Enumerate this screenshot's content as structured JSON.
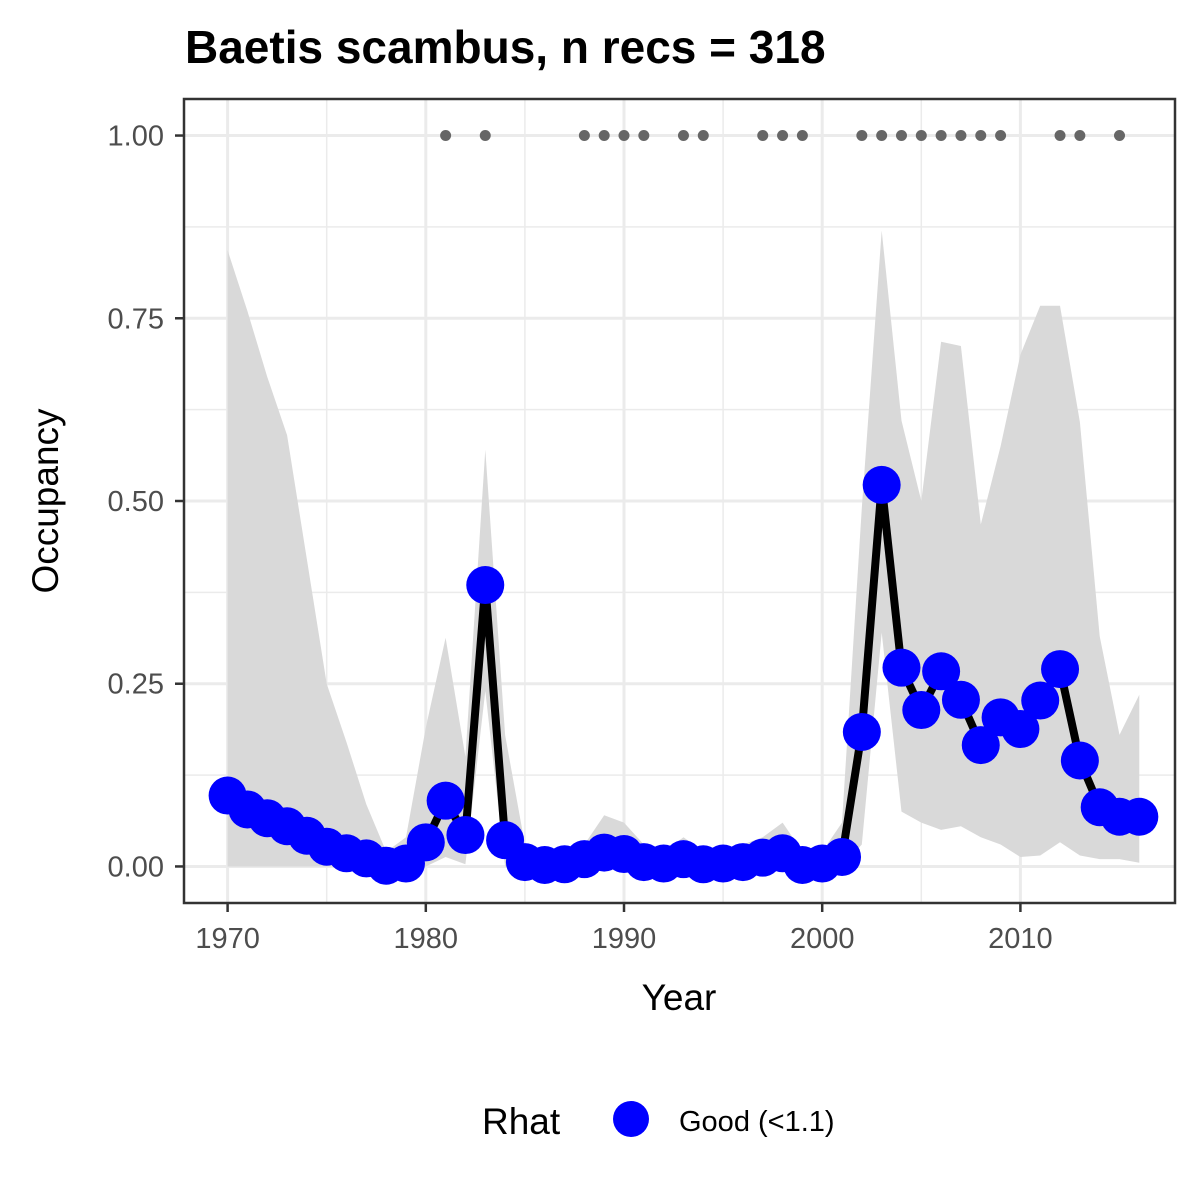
{
  "chart_data": {
    "type": "line",
    "title": "Baetis scambus, n recs = 318",
    "xlabel": "Year",
    "ylabel": "Occupancy",
    "xlim": [
      1967.8,
      2017.8
    ],
    "ylim": [
      -0.05,
      1.05
    ],
    "x_ticks": [
      1970,
      1980,
      1990,
      2000,
      2010
    ],
    "x_tick_labels": [
      "1970",
      "1980",
      "1990",
      "2000",
      "2010"
    ],
    "y_ticks": [
      0,
      0.25,
      0.5,
      0.75,
      1.0
    ],
    "y_tick_labels": [
      "0.00",
      "0.25",
      "0.50",
      "0.75",
      "1.00"
    ],
    "grid": true,
    "colors": {
      "points": "#0000ff",
      "line": "#000000",
      "ribbon": "#d9d9d9",
      "record_dots": "#666666",
      "panel_border": "#333333",
      "grid": "#ebebeb"
    },
    "years": [
      1970,
      1971,
      1972,
      1973,
      1974,
      1975,
      1976,
      1977,
      1978,
      1979,
      1980,
      1981,
      1982,
      1983,
      1984,
      1985,
      1986,
      1987,
      1988,
      1989,
      1990,
      1991,
      1992,
      1993,
      1994,
      1995,
      1996,
      1997,
      1998,
      1999,
      2000,
      2001,
      2002,
      2003,
      2004,
      2005,
      2006,
      2007,
      2008,
      2009,
      2010,
      2011,
      2012,
      2013,
      2014,
      2015,
      2016
    ],
    "occupancy": [
      0.097,
      0.078,
      0.066,
      0.055,
      0.042,
      0.027,
      0.018,
      0.011,
      0.001,
      0.004,
      0.033,
      0.09,
      0.043,
      0.385,
      0.036,
      0.006,
      0.002,
      0.003,
      0.01,
      0.019,
      0.017,
      0.006,
      0.004,
      0.01,
      0.003,
      0.004,
      0.006,
      0.012,
      0.018,
      0.002,
      0.004,
      0.013,
      0.184,
      0.522,
      0.272,
      0.214,
      0.267,
      0.228,
      0.166,
      0.204,
      0.188,
      0.227,
      0.27,
      0.145,
      0.081,
      0.068,
      0.068
    ],
    "ci_lower": [
      0.0,
      0.0,
      0.0,
      0.0,
      0.0,
      0.0,
      0.0,
      0.0,
      0.0,
      0.0,
      0.0,
      0.013,
      0.003,
      0.24,
      0.0,
      0.0,
      0.0,
      0.0,
      0.0,
      0.0,
      0.0,
      0.0,
      0.0,
      0.0,
      0.0,
      0.0,
      0.0,
      0.0,
      0.0,
      0.0,
      0.0,
      0.0,
      0.03,
      0.32,
      0.075,
      0.06,
      0.05,
      0.055,
      0.04,
      0.03,
      0.013,
      0.015,
      0.033,
      0.015,
      0.01,
      0.01,
      0.005
    ],
    "ci_upper": [
      0.843,
      0.76,
      0.67,
      0.59,
      0.42,
      0.25,
      0.17,
      0.085,
      0.02,
      0.04,
      0.19,
      0.313,
      0.15,
      0.57,
      0.18,
      0.03,
      0.02,
      0.02,
      0.03,
      0.07,
      0.06,
      0.03,
      0.02,
      0.04,
      0.02,
      0.02,
      0.03,
      0.04,
      0.06,
      0.02,
      0.02,
      0.06,
      0.49,
      0.87,
      0.61,
      0.5,
      0.718,
      0.712,
      0.468,
      0.575,
      0.7,
      0.767,
      0.767,
      0.608,
      0.315,
      0.18,
      0.235
    ],
    "record_years": [
      1981,
      1983,
      1988,
      1989,
      1990,
      1991,
      1993,
      1994,
      1997,
      1998,
      1999,
      2002,
      2003,
      2004,
      2005,
      2006,
      2007,
      2008,
      2009,
      2012,
      2013,
      2015
    ],
    "record_y": 1.0,
    "legend": {
      "title": "Rhat",
      "entries": [
        {
          "label": "Good (<1.1)",
          "color": "#0000ff"
        }
      ],
      "position": "bottom"
    }
  }
}
